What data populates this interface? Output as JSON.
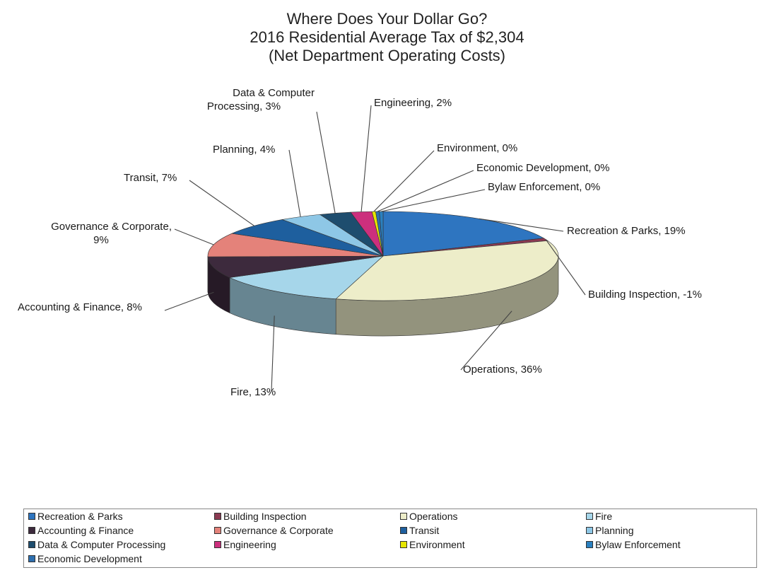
{
  "title_lines": [
    "Where Does Your Dollar Go?",
    "2016 Residential Average Tax of $2,304",
    "(Net Department Operating Costs)"
  ],
  "chart_data": {
    "type": "pie",
    "title": "Where Does Your Dollar Go? 2016 Residential Average Tax of $2,304 (Net Department Operating Costs)",
    "slices": [
      {
        "name": "Recreation & Parks",
        "label": "Recreation & Parks, 19%",
        "value": 19,
        "color": "#2e75c0"
      },
      {
        "name": "Building Inspection",
        "label": "Building Inspection, -1%",
        "value": -1,
        "color": "#8b3a52"
      },
      {
        "name": "Operations",
        "label": "Operations, 36%",
        "value": 36,
        "color": "#ededc9"
      },
      {
        "name": "Fire",
        "label": "Fire, 13%",
        "value": 13,
        "color": "#a6d6ea"
      },
      {
        "name": "Accounting & Finance",
        "label": "Accounting & Finance, 8%",
        "value": 8,
        "color": "#3d2a3d"
      },
      {
        "name": "Governance & Corporate",
        "label": "Governance & Corporate,\n9%",
        "value": 9,
        "color": "#e4827a"
      },
      {
        "name": "Transit",
        "label": "Transit, 7%",
        "value": 7,
        "color": "#1e5f9e"
      },
      {
        "name": "Planning",
        "label": "Planning, 4%",
        "value": 4,
        "color": "#8ec7e6"
      },
      {
        "name": "Data & Computer Processing",
        "label": "Data & Computer\nProcessing, 3%",
        "value": 3,
        "color": "#1e4d6e"
      },
      {
        "name": "Engineering",
        "label": "Engineering, 2%",
        "value": 2,
        "color": "#cc2f7d"
      },
      {
        "name": "Environment",
        "label": "Environment, 0%",
        "value": 0,
        "color": "#e6e600"
      },
      {
        "name": "Economic Development",
        "label": "Economic Development, 0%",
        "value": 0,
        "color": "#2e6faf"
      },
      {
        "name": "Bylaw Enforcement",
        "label": "Bylaw Enforcement, 0%",
        "value": 0,
        "color": "#2a80c0"
      }
    ],
    "legend": {
      "placement": "bottom",
      "items": [
        "Recreation & Parks",
        "Building Inspection",
        "Operations",
        "Fire",
        "Accounting & Finance",
        "Governance & Corporate",
        "Transit",
        "Planning",
        "Data & Computer Processing",
        "Engineering",
        "Environment",
        "Bylaw Enforcement",
        "Economic Development"
      ]
    }
  }
}
